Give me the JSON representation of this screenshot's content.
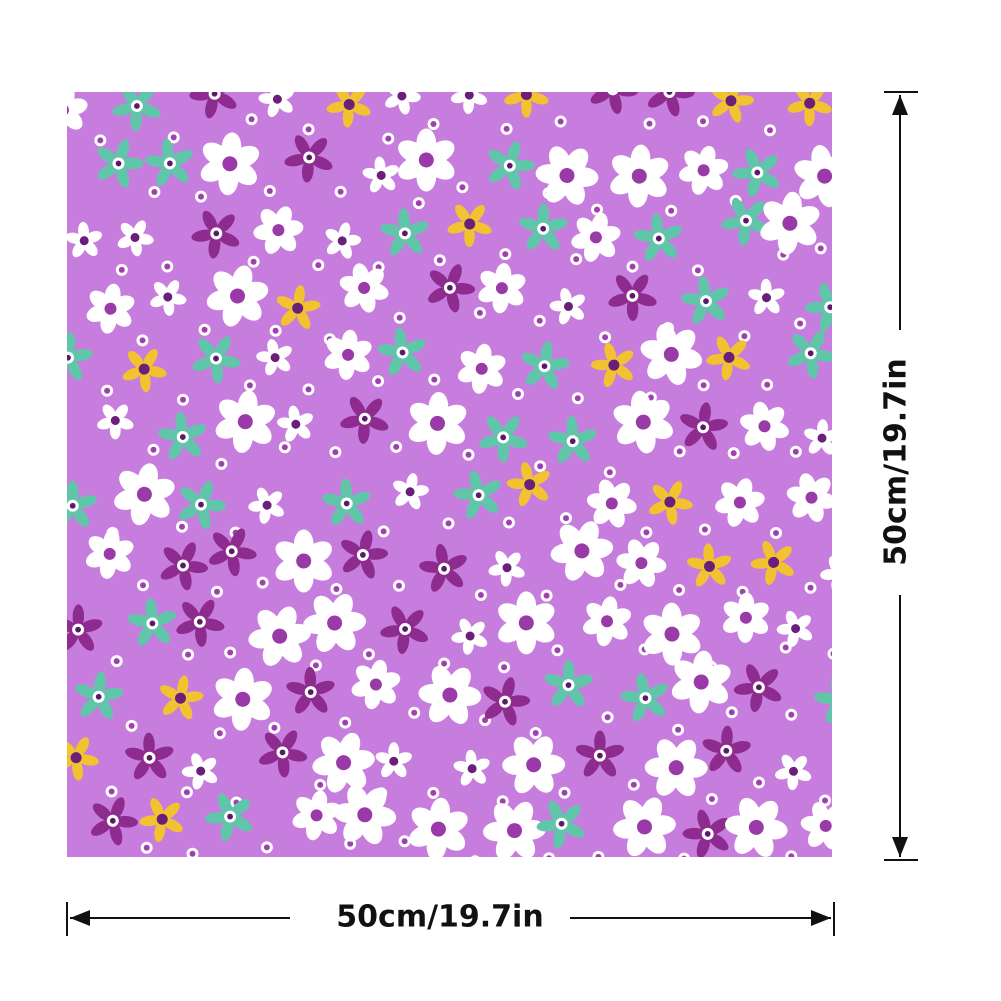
{
  "dimensions": {
    "width": {
      "label": "50cm/19.7in"
    },
    "height": {
      "label": "50cm/19.7in"
    }
  }
}
